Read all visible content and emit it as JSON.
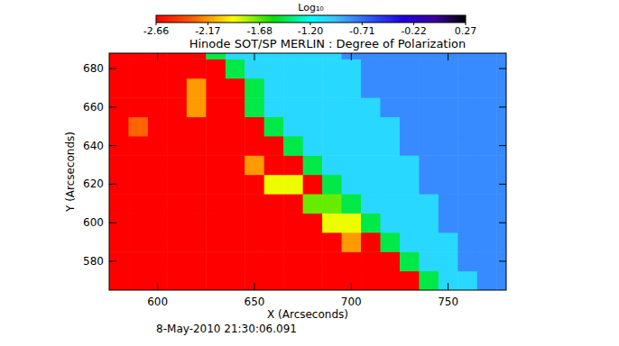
{
  "chart_data": {
    "type": "heatmap",
    "title": "Hinode SOT/SP  MERLIN : Degree of Polarization",
    "x_label": "X (Arcseconds)",
    "y_label": "Y (Arcseconds)",
    "annotation": "8-May-2010 21:30:06.091",
    "x": [
      580,
      590,
      600,
      610,
      620,
      630,
      640,
      650,
      660,
      670,
      680,
      690,
      700,
      710,
      720,
      730,
      740,
      750,
      760,
      770,
      780
    ],
    "y": [
      570,
      580,
      590,
      600,
      610,
      620,
      630,
      640,
      650,
      660,
      670,
      680,
      690
    ],
    "values": [
      [
        -2.66,
        -2.66,
        -2.66,
        -2.66,
        -2.66,
        -2.66,
        -2.66,
        -2.66,
        -2.66,
        -2.66,
        -2.66,
        -2.66,
        -2.66,
        -2.66,
        -2.66,
        -2.66,
        -1.45,
        -1.05,
        -1.05,
        -0.8,
        -0.8
      ],
      [
        -2.66,
        -2.66,
        -2.66,
        -2.66,
        -2.66,
        -2.66,
        -2.66,
        -2.66,
        -2.66,
        -2.66,
        -2.66,
        -2.66,
        -2.66,
        -2.66,
        -2.66,
        -1.45,
        -1.05,
        -1.05,
        -0.8,
        -0.8,
        -0.8
      ],
      [
        -2.66,
        -2.66,
        -2.66,
        -2.66,
        -2.66,
        -2.66,
        -2.66,
        -2.66,
        -2.66,
        -2.66,
        -2.66,
        -2.66,
        -2.17,
        -2.66,
        -1.45,
        -1.05,
        -1.05,
        -1.05,
        -0.8,
        -0.8,
        -0.8
      ],
      [
        -2.66,
        -2.66,
        -2.66,
        -2.66,
        -2.66,
        -2.66,
        -2.66,
        -2.66,
        -2.66,
        -2.66,
        -2.66,
        -1.9,
        -1.9,
        -1.45,
        -1.05,
        -1.05,
        -1.05,
        -0.8,
        -0.8,
        -0.8,
        -0.8
      ],
      [
        -2.66,
        -2.66,
        -2.66,
        -2.66,
        -2.66,
        -2.66,
        -2.66,
        -2.66,
        -2.66,
        -2.66,
        -1.7,
        -1.7,
        -1.45,
        -1.05,
        -1.05,
        -1.05,
        -1.05,
        -0.8,
        -0.8,
        -0.8,
        -0.8
      ],
      [
        -2.66,
        -2.66,
        -2.66,
        -2.66,
        -2.66,
        -2.66,
        -2.66,
        -2.66,
        -1.9,
        -1.9,
        -2.66,
        -1.45,
        -1.05,
        -1.05,
        -1.05,
        -1.05,
        -0.8,
        -0.8,
        -0.8,
        -0.8,
        -0.8
      ],
      [
        -2.66,
        -2.66,
        -2.66,
        -2.66,
        -2.66,
        -2.66,
        -2.66,
        -2.17,
        -2.66,
        -2.66,
        -1.45,
        -1.05,
        -1.05,
        -1.05,
        -1.05,
        -1.05,
        -0.8,
        -0.8,
        -0.8,
        -0.8,
        -0.8
      ],
      [
        -2.66,
        -2.66,
        -2.66,
        -2.66,
        -2.66,
        -2.66,
        -2.66,
        -2.66,
        -2.66,
        -1.45,
        -1.05,
        -1.05,
        -1.05,
        -1.05,
        -1.05,
        -0.8,
        -0.8,
        -0.8,
        -0.8,
        -0.8,
        -0.8
      ],
      [
        -2.66,
        -2.3,
        -2.66,
        -2.66,
        -2.66,
        -2.66,
        -2.66,
        -2.66,
        -1.45,
        -1.05,
        -1.05,
        -1.05,
        -1.05,
        -1.05,
        -1.05,
        -0.8,
        -0.8,
        -0.8,
        -0.8,
        -0.8,
        -0.8
      ],
      [
        -2.66,
        -2.66,
        -2.66,
        -2.66,
        -2.17,
        -2.66,
        -2.66,
        -1.45,
        -1.05,
        -1.05,
        -1.05,
        -1.05,
        -1.05,
        -1.05,
        -0.8,
        -0.8,
        -0.8,
        -0.8,
        -0.8,
        -0.8,
        -0.8
      ],
      [
        -2.66,
        -2.66,
        -2.66,
        -2.66,
        -2.17,
        -2.66,
        -2.66,
        -1.45,
        -1.05,
        -1.05,
        -1.05,
        -1.05,
        -1.05,
        -0.8,
        -0.8,
        -0.8,
        -0.8,
        -0.8,
        -0.8,
        -0.8,
        -0.8
      ],
      [
        -2.66,
        -2.66,
        -2.66,
        -2.66,
        -2.66,
        -2.66,
        -1.45,
        -1.05,
        -1.05,
        -1.05,
        -1.05,
        -1.05,
        -1.05,
        -0.8,
        -0.8,
        -0.8,
        -0.8,
        -0.8,
        -0.8,
        -0.8,
        -0.8
      ],
      [
        -2.66,
        -2.66,
        -2.66,
        -2.66,
        -2.66,
        -1.45,
        -1.05,
        -1.05,
        -1.05,
        -1.05,
        -1.05,
        -1.05,
        -0.8,
        -0.8,
        -0.8,
        -0.8,
        -0.8,
        -0.8,
        -0.8,
        -0.8,
        -0.8
      ]
    ],
    "xlim": [
      575,
      780
    ],
    "ylim": [
      565,
      688
    ],
    "xticks": [
      600,
      650,
      700,
      750
    ],
    "yticks": [
      580,
      600,
      620,
      640,
      660,
      680
    ],
    "colorbar": {
      "label": "Log₁₀",
      "range": [
        -2.66,
        0.27
      ],
      "ticks": [
        -2.66,
        -2.17,
        -1.68,
        {
          "value": -1.2,
          "label": "-1.20"
        },
        -0.71,
        -0.22,
        0.27
      ]
    },
    "grid": false
  }
}
